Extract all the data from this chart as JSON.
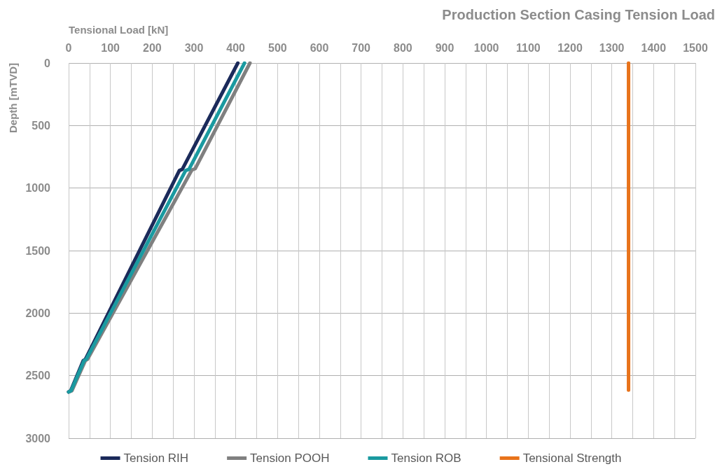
{
  "chart_data": {
    "type": "line",
    "title": "Production Section Casing Tension Load",
    "xlabel": "Tensional Load [kN]",
    "ylabel": "Depth [mTVD]",
    "xlim": [
      0,
      1500
    ],
    "xticks": [
      0,
      {
        "value": 50,
        "label": null
      },
      100,
      {
        "value": 150,
        "label": null
      },
      200,
      {
        "value": 250,
        "label": null
      },
      300,
      {
        "value": 350,
        "label": null
      },
      400,
      {
        "value": 450,
        "label": null
      },
      500,
      {
        "value": 550,
        "label": null
      },
      600,
      {
        "value": 650,
        "label": null
      },
      700,
      {
        "value": 750,
        "label": null
      },
      800,
      {
        "value": 850,
        "label": null
      },
      900,
      {
        "value": 950,
        "label": null
      },
      1000,
      {
        "value": 1050,
        "label": null
      },
      1100,
      {
        "value": 1150,
        "label": null
      },
      1200,
      {
        "value": 1250,
        "label": null
      },
      1300,
      {
        "value": 1350,
        "label": null
      },
      1400,
      {
        "value": 1450,
        "label": null
      },
      1500
    ],
    "ylim": [
      3000,
      0
    ],
    "yticks": [
      0,
      500,
      1000,
      1500,
      2000,
      2500,
      3000
    ],
    "grid": true,
    "legend": "bottom",
    "marker": "none",
    "line_style": "solid",
    "series": [
      {
        "name": "Tension RIH",
        "color": "#1b2a5a",
        "x": [
          405,
          272,
          265,
          40,
          35,
          5,
          0
        ],
        "values": [
          0,
          850,
          860,
          2370,
          2380,
          2620,
          2630
        ]
      },
      {
        "name": "Tension POOH",
        "color": "#808080",
        "x": [
          434,
          303,
          295,
          45,
          40,
          8,
          0
        ],
        "values": [
          0,
          845,
          855,
          2370,
          2380,
          2620,
          2630
        ]
      },
      {
        "name": "Tension ROB",
        "color": "#1a9aa0",
        "x": [
          421,
          288,
          280,
          42,
          37,
          6,
          0
        ],
        "values": [
          0,
          850,
          860,
          2370,
          2380,
          2620,
          2630
        ]
      },
      {
        "name": "Tensional Strength",
        "color": "#e8731b",
        "x": [
          1340,
          1340
        ],
        "values": [
          0,
          2615
        ]
      }
    ]
  }
}
